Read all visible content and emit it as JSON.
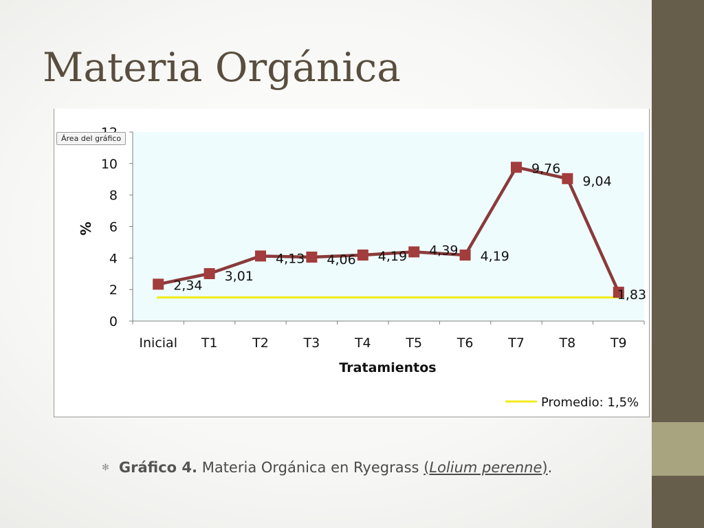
{
  "slide": {
    "title": "Materia Orgánica"
  },
  "tooltip": {
    "label": "Área del gráfico"
  },
  "caption": {
    "bullet": "✻",
    "label": "Gráfico 4.",
    "text": "Materia Orgánica en Ryegrass",
    "paren_open": "(",
    "species": "Lolium perenne",
    "paren_close": ")",
    "period": "."
  },
  "colors": {
    "series_line": "#8b3a3a",
    "series_marker": "#a33c3c",
    "average_line": "#f2ea1a",
    "plot_background": "#eefcfe",
    "slide_bar": "#665e4b",
    "slide_accent": "#a8a47f",
    "title": "#594e3e"
  },
  "chart_data": {
    "type": "line",
    "categories": [
      "Inicial",
      "T1",
      "T2",
      "T3",
      "T4",
      "T5",
      "T6",
      "T7",
      "T8",
      "T9"
    ],
    "series": [
      {
        "values": [
          2.34,
          3.01,
          4.13,
          4.06,
          4.19,
          4.39,
          4.19,
          9.76,
          9.04,
          1.83
        ],
        "data_labels": [
          "2,34",
          "3,01",
          "4,13",
          "4,06",
          "4,19",
          "4,39",
          "4,19",
          "9,76",
          "9,04",
          "1,83"
        ],
        "marker": "square"
      },
      {
        "name": "Promedio: 1,5%",
        "values": [
          1.5,
          1.5,
          1.5,
          1.5,
          1.5,
          1.5,
          1.5,
          1.5,
          1.5,
          1.5
        ]
      }
    ],
    "xlabel": "Tratamientos",
    "ylabel": "%",
    "ylim": [
      0,
      12
    ],
    "yticks": [
      0,
      2,
      4,
      6,
      8,
      10,
      12
    ],
    "grid": false,
    "legend": "bottom-right"
  }
}
